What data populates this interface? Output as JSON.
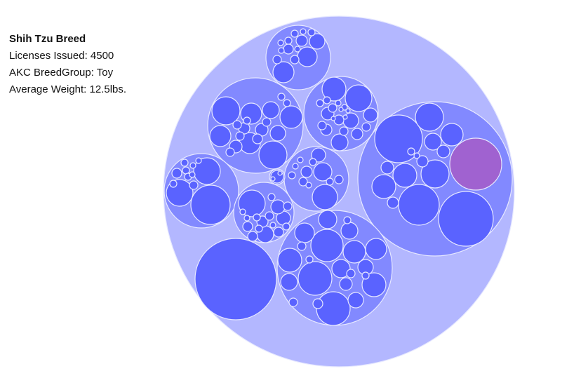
{
  "tooltip": {
    "title": "Shih Tzu Breed",
    "licenses_label": "Licenses Issued: 4500",
    "group_label": "AKC BreedGroup: Toy",
    "weight_label": "Average Weight: 12.5lbs."
  },
  "chart_data": {
    "type": "circle-packing",
    "title": "",
    "highlighted": {
      "breed": "Shih Tzu",
      "licenses_issued": 4500,
      "akc_breed_group": "Toy",
      "average_weight_lbs": 12.5
    },
    "colors": {
      "root": "#b3b7ff",
      "group": "#8289ff",
      "leaf": "#5a63ff",
      "highlight": "#a062d0"
    },
    "group_count": 10
  }
}
